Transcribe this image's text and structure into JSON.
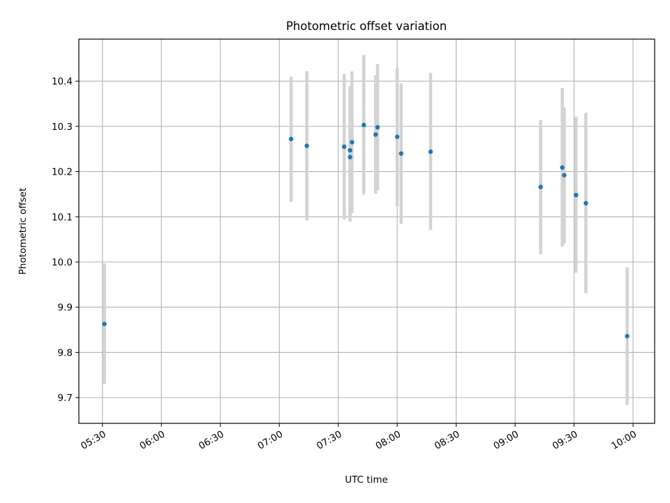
{
  "chart_data": {
    "type": "scatter",
    "title": "Photometric offset variation",
    "xlabel": "UTC time",
    "ylabel": "Photometric offset",
    "x_tick_labels": [
      "05:30",
      "06:00",
      "06:30",
      "07:00",
      "07:30",
      "08:00",
      "08:30",
      "09:00",
      "09:30",
      "10:00"
    ],
    "y_ticks": [
      9.7,
      9.8,
      9.9,
      10.0,
      10.1,
      10.2,
      10.3,
      10.4
    ],
    "y_tick_labels": [
      "9.7",
      "9.8",
      "9.9",
      "10.0",
      "10.1",
      "10.2",
      "10.3",
      "10.4"
    ],
    "xlim": [
      "05:18",
      "10:11"
    ],
    "ylim": [
      9.643,
      10.493
    ],
    "grid": true,
    "marker_color": "#1f77b4",
    "errorbar_color": "#d3d3d3",
    "points": [
      {
        "x": "05:31",
        "y": 9.863,
        "ylow": 9.73,
        "yhigh": 9.997
      },
      {
        "x": "07:06",
        "y": 10.272,
        "ylow": 10.133,
        "yhigh": 10.41
      },
      {
        "x": "07:14",
        "y": 10.257,
        "ylow": 10.092,
        "yhigh": 10.422
      },
      {
        "x": "07:33",
        "y": 10.255,
        "ylow": 10.094,
        "yhigh": 10.416
      },
      {
        "x": "07:36",
        "y": 10.247,
        "ylow": 10.105,
        "yhigh": 10.389
      },
      {
        "x": "07:36",
        "y": 10.232,
        "ylow": 10.089,
        "yhigh": 10.375
      },
      {
        "x": "07:37",
        "y": 10.265,
        "ylow": 10.108,
        "yhigh": 10.422
      },
      {
        "x": "07:43",
        "y": 10.303,
        "ylow": 10.149,
        "yhigh": 10.458
      },
      {
        "x": "07:49",
        "y": 10.282,
        "ylow": 10.151,
        "yhigh": 10.413
      },
      {
        "x": "07:50",
        "y": 10.298,
        "ylow": 10.158,
        "yhigh": 10.438
      },
      {
        "x": "08:00",
        "y": 10.277,
        "ylow": 10.124,
        "yhigh": 10.43
      },
      {
        "x": "08:02",
        "y": 10.24,
        "ylow": 10.084,
        "yhigh": 10.395
      },
      {
        "x": "08:17",
        "y": 10.244,
        "ylow": 10.071,
        "yhigh": 10.418
      },
      {
        "x": "09:13",
        "y": 10.166,
        "ylow": 10.017,
        "yhigh": 10.314
      },
      {
        "x": "09:24",
        "y": 10.209,
        "ylow": 10.034,
        "yhigh": 10.385
      },
      {
        "x": "09:25",
        "y": 10.192,
        "ylow": 10.041,
        "yhigh": 10.342
      },
      {
        "x": "09:31",
        "y": 10.148,
        "ylow": 9.976,
        "yhigh": 10.321
      },
      {
        "x": "09:36",
        "y": 10.13,
        "ylow": 9.931,
        "yhigh": 10.33
      },
      {
        "x": "09:57",
        "y": 9.836,
        "ylow": 9.684,
        "yhigh": 9.988
      }
    ]
  }
}
